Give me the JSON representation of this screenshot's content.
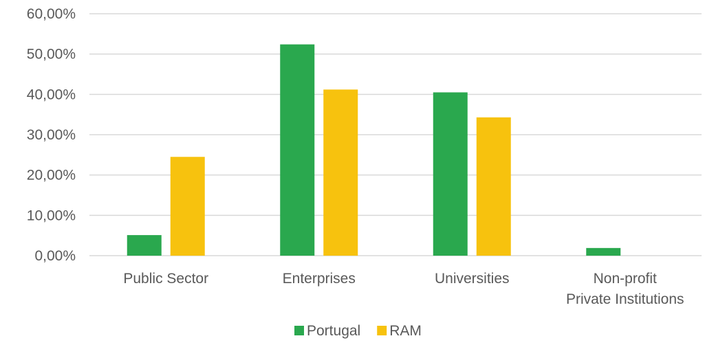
{
  "chart_data": {
    "type": "bar",
    "categories": [
      [
        "Public Sector"
      ],
      [
        "Enterprises"
      ],
      [
        "Universities"
      ],
      [
        "Non-profit",
        "Private Institutions"
      ]
    ],
    "series": [
      {
        "name": "Portugal",
        "color": "#2AA84E",
        "values": [
          5.1,
          52.4,
          40.5,
          1.9
        ]
      },
      {
        "name": "RAM",
        "color": "#F7C20E",
        "values": [
          24.5,
          41.2,
          34.3,
          0
        ]
      }
    ],
    "y_ticks": [
      "0,00%",
      "10,00%",
      "20,00%",
      "30,00%",
      "40,00%",
      "50,00%",
      "60,00%"
    ],
    "ylim": [
      0,
      60
    ],
    "grid": true,
    "gridline_color": "#D9D9D9",
    "legend_position": "bottom-center"
  }
}
